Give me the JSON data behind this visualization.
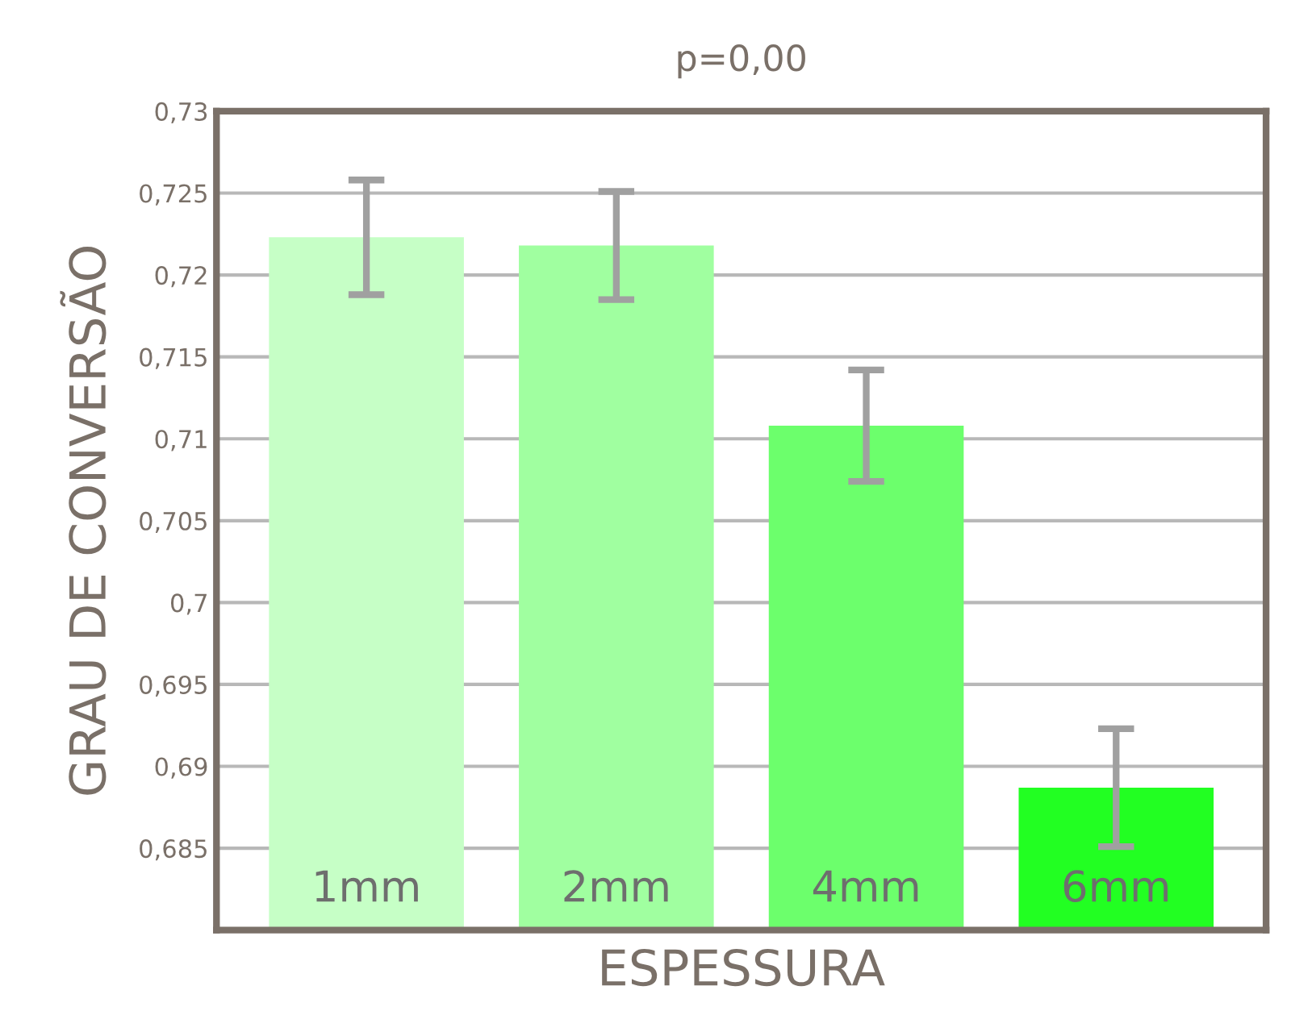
{
  "chart_data": {
    "type": "bar",
    "title": "p=0,00",
    "xlabel": "ESPESSURA",
    "ylabel": "GRAU DE CONVERSÃO",
    "categories": [
      "1mm",
      "2mm",
      "4mm",
      "6mm"
    ],
    "values": [
      0.7223,
      0.7218,
      0.7108,
      0.6887
    ],
    "errors": [
      0.0035,
      0.0033,
      0.0034,
      0.0036
    ],
    "colors": [
      "#c6ffc6",
      "#a0ffa0",
      "#6cff6c",
      "#22ff22"
    ],
    "ylim": [
      0.68,
      0.73
    ],
    "yticks": [
      {
        "value": 0.685,
        "label": "0,685"
      },
      {
        "value": 0.69,
        "label": "0,69"
      },
      {
        "value": 0.695,
        "label": "0,695"
      },
      {
        "value": 0.7,
        "label": "0,7"
      },
      {
        "value": 0.705,
        "label": "0,705"
      },
      {
        "value": 0.71,
        "label": "0,71"
      },
      {
        "value": 0.715,
        "label": "0,715"
      },
      {
        "value": 0.72,
        "label": "0,72"
      },
      {
        "value": 0.725,
        "label": "0,725"
      },
      {
        "value": 0.73,
        "label": "0,73"
      }
    ],
    "grid": "y",
    "legend": false
  }
}
